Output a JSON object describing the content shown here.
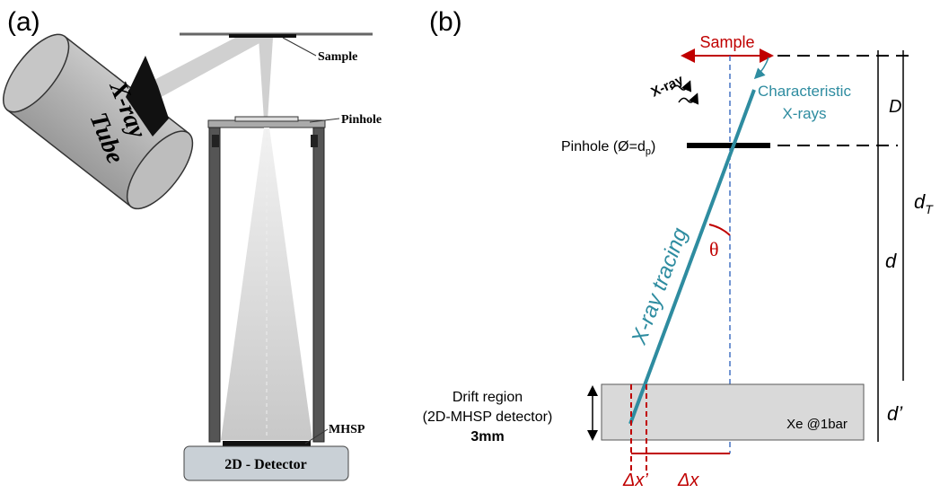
{
  "panel_a": {
    "label": "(a)",
    "tube": {
      "line1": "X-ray",
      "line2": "Tube"
    },
    "sample": "Sample",
    "pinhole": "Pinhole",
    "mhsp": "MHSP",
    "detector": "2D - Detector"
  },
  "panel_b": {
    "label": "(b)",
    "sample": "Sample",
    "xray": "X-ray",
    "characteristic": {
      "line1": "Characteristic",
      "line2": "X-rays"
    },
    "D": "D",
    "pinhole": {
      "main": "Pinhole  (Ø=d",
      "sub": "p",
      "close": ")"
    },
    "dT": {
      "main": "d",
      "sub": "T"
    },
    "theta": "θ",
    "tracing": "X-ray tracing",
    "d": "d",
    "drift": {
      "line1": "Drift region",
      "line2": "(2D-MHSP detector)",
      "line3": "3mm"
    },
    "gas": "Xe @1bar",
    "d_prime": "d’",
    "dx_prime": "Δx’",
    "dx": "Δx"
  }
}
